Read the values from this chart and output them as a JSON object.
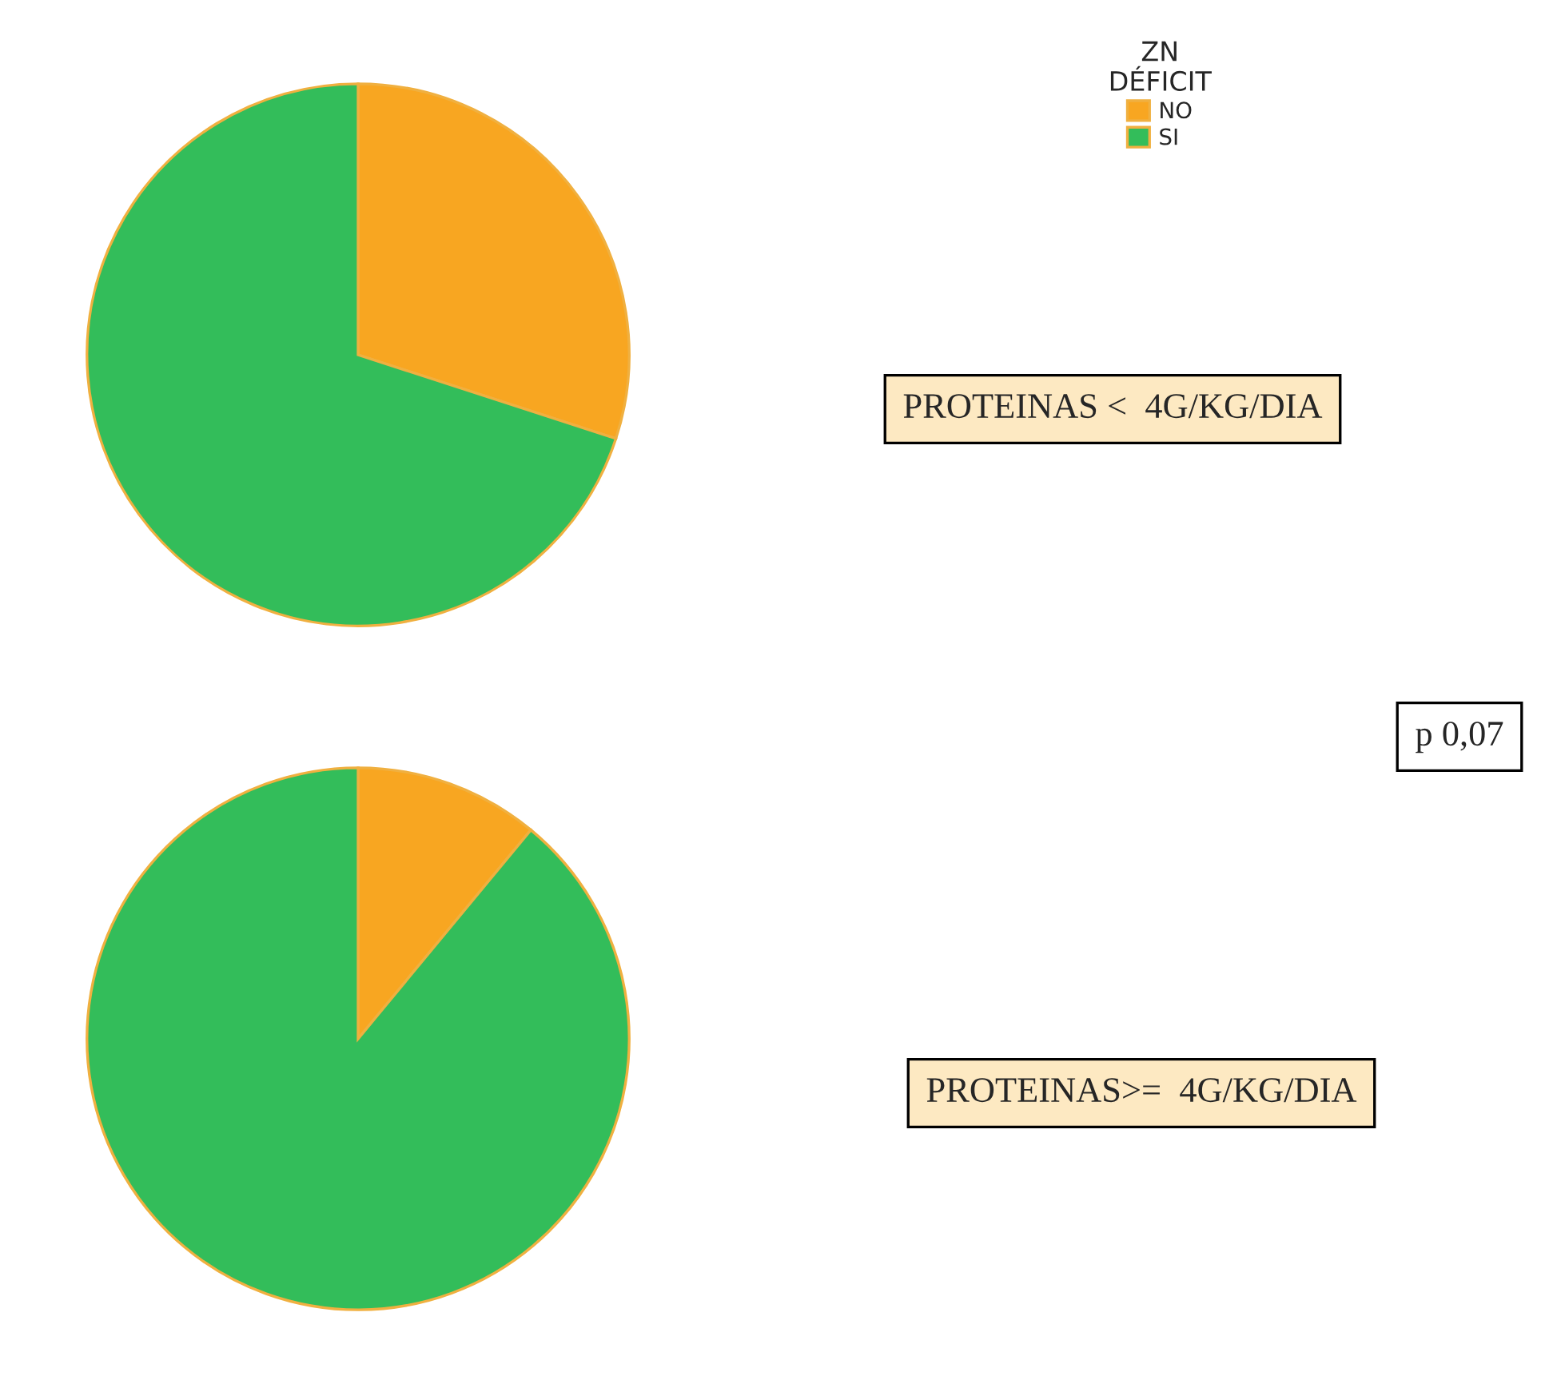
{
  "chart_data": [
    {
      "type": "pie",
      "categories": [
        "NO",
        "SI"
      ],
      "values": [
        30,
        70
      ],
      "colors": [
        "#f8a621",
        "#33bd5a"
      ],
      "legend_title": "ZN\nDÉFICIT",
      "legend": "top right",
      "annotations": [
        "PROTEINAS <  4G/KG/DIA"
      ]
    },
    {
      "type": "pie",
      "categories": [
        null,
        null
      ],
      "values": [
        11,
        89
      ],
      "colors": [
        "#f8a621",
        "#33bd5a"
      ],
      "annotations": [
        "p 0,07",
        "PROTEINAS>=  4G/KG/DIA"
      ]
    }
  ]
}
